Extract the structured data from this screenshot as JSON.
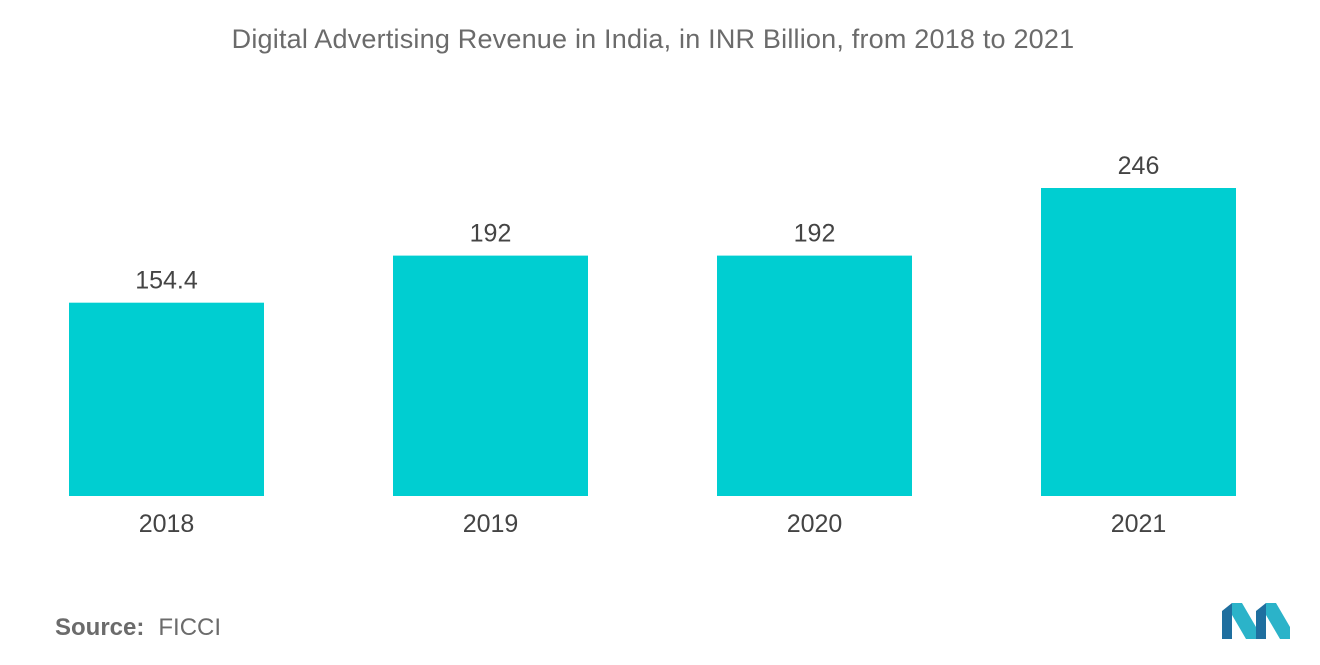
{
  "chart_data": {
    "type": "bar",
    "title": "Digital Advertising Revenue in India, in INR Billion, from 2018 to 2021",
    "categories": [
      "2018",
      "2019",
      "2020",
      "2021"
    ],
    "values": [
      154.4,
      192,
      192,
      246
    ],
    "value_labels": [
      "154.4",
      "192",
      "192",
      "246"
    ],
    "xlabel": "",
    "ylabel": "",
    "ylim": [
      0,
      246
    ],
    "grid": false,
    "legend": "none",
    "bar_color": "#00CED1"
  },
  "source": {
    "label": "Source:",
    "value": "FICCI"
  },
  "logo": {
    "icon": "mordor-intelligence-logo-icon",
    "colors": [
      "#1f6f9f",
      "#2bb3c9"
    ]
  }
}
